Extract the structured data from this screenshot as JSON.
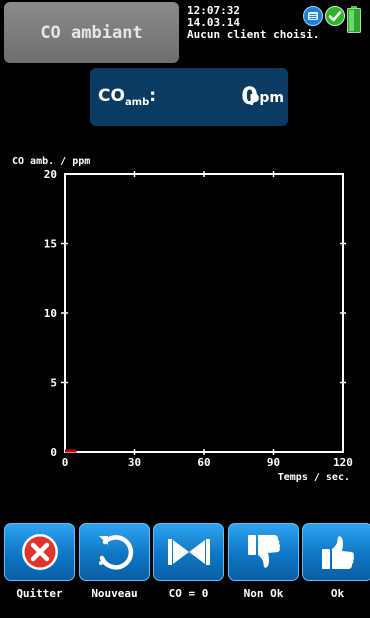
{
  "header": {
    "title": "CO ambiant",
    "time": "12:07:32",
    "date": "14.03.14",
    "client": "Aucun client choisi."
  },
  "status_icons": [
    "printer-icon",
    "check-circle-icon",
    "battery-icon"
  ],
  "reading": {
    "label_main": "CO",
    "label_sub": "amb",
    "label_suffix": ":",
    "value": "0",
    "unit": "ppm"
  },
  "chart_data": {
    "type": "line",
    "ylabel": "CO amb. / ppm",
    "xlabel": "Temps / sec.",
    "xlim": [
      0,
      120
    ],
    "ylim": [
      0,
      20
    ],
    "x_ticks": [
      "0",
      "30",
      "60",
      "90",
      "120"
    ],
    "y_ticks": [
      "0",
      "5",
      "10",
      "15",
      "20"
    ],
    "grid": false,
    "series": [
      {
        "color": "#cc0000",
        "x": [
          0,
          5
        ],
        "y": [
          0,
          0
        ]
      }
    ]
  },
  "toolbar": {
    "buttons": [
      {
        "id": "quit",
        "label": "Quitter",
        "icon": "close-circle-icon"
      },
      {
        "id": "new",
        "label": "Nouveau",
        "icon": "refresh-icon"
      },
      {
        "id": "zero",
        "label": "CO = 0",
        "icon": "valve-icon"
      },
      {
        "id": "notok",
        "label": "Non Ok",
        "icon": "thumbs-down-icon"
      },
      {
        "id": "ok",
        "label": "Ok",
        "icon": "thumbs-up-icon"
      }
    ]
  },
  "colors": {
    "button_blue": "#1a8fe0",
    "reading_bg": "#0b3b63",
    "title_tab": "#7d7d7d",
    "series": "#cc0000"
  }
}
